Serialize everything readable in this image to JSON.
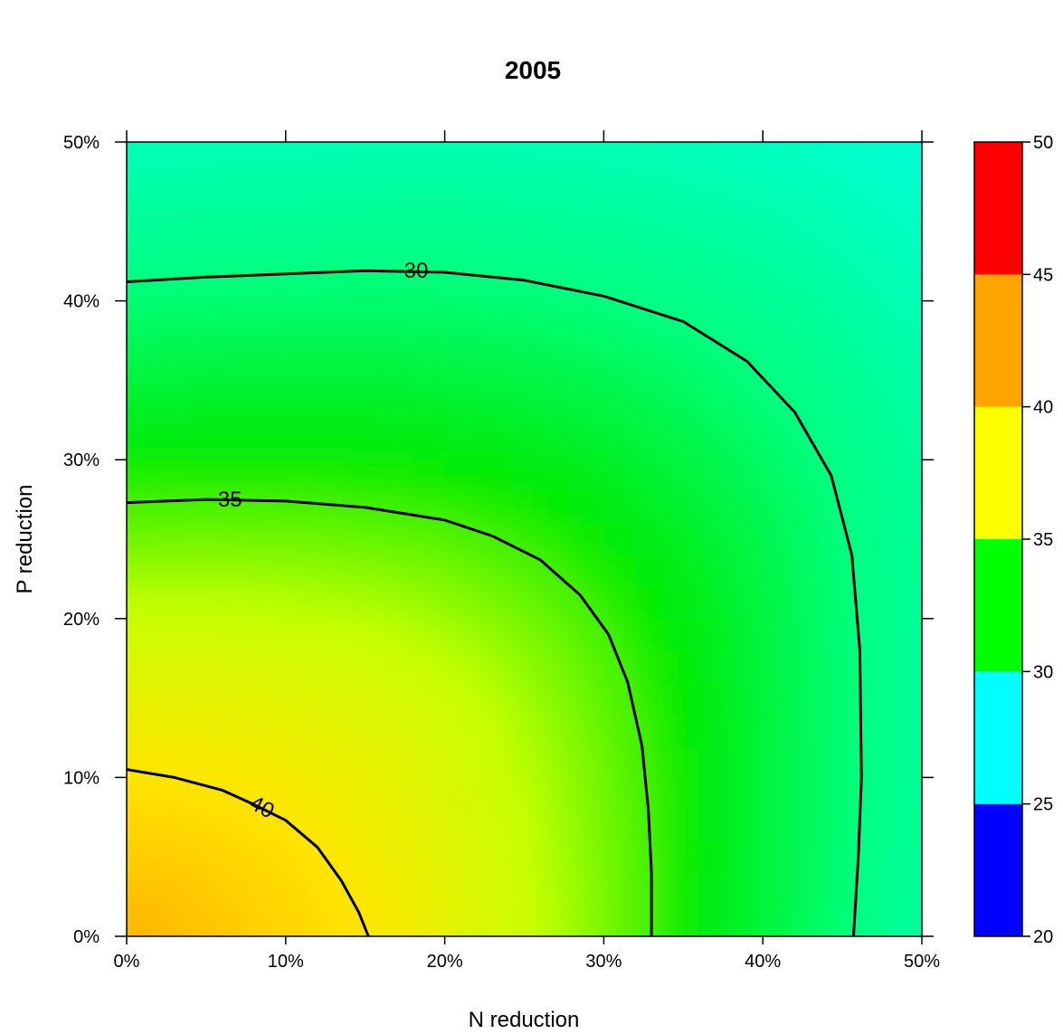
{
  "chart_data": {
    "type": "heatmap",
    "title": "2005",
    "xlabel": "N reduction",
    "ylabel": "P reduction",
    "xlim": [
      0,
      50
    ],
    "ylim": [
      0,
      50
    ],
    "x_ticks": [
      0,
      10,
      20,
      30,
      40,
      50
    ],
    "y_ticks": [
      0,
      10,
      20,
      30,
      40,
      50
    ],
    "x_tick_labels": [
      "0%",
      "10%",
      "20%",
      "30%",
      "40%",
      "50%"
    ],
    "y_tick_labels": [
      "0%",
      "10%",
      "20%",
      "30%",
      "40%",
      "50%"
    ],
    "colorbar": {
      "breaks": [
        20,
        25,
        30,
        35,
        40,
        45,
        50
      ],
      "labels": [
        "20",
        "25",
        "30",
        "35",
        "40",
        "45",
        "50"
      ],
      "colors": [
        "#0000ff",
        "#00ffff",
        "#00ff00",
        "#ffff00",
        "#ffa500",
        "#ff0000"
      ]
    },
    "contours": [
      {
        "level": 30,
        "label": "30",
        "points": [
          [
            0,
            41.2
          ],
          [
            5,
            41.5
          ],
          [
            10,
            41.7
          ],
          [
            15,
            41.9
          ],
          [
            20,
            41.8
          ],
          [
            25,
            41.3
          ],
          [
            30,
            40.3
          ],
          [
            35,
            38.7
          ],
          [
            39,
            36.2
          ],
          [
            42,
            33.0
          ],
          [
            44.3,
            29.0
          ],
          [
            45.6,
            24.0
          ],
          [
            46.1,
            18.0
          ],
          [
            46.2,
            10.0
          ],
          [
            46.0,
            5.0
          ],
          [
            45.7,
            0
          ]
        ]
      },
      {
        "level": 35,
        "label": "35",
        "points": [
          [
            0,
            27.3
          ],
          [
            5,
            27.5
          ],
          [
            10,
            27.4
          ],
          [
            15,
            27.0
          ],
          [
            20,
            26.2
          ],
          [
            23,
            25.2
          ],
          [
            26,
            23.7
          ],
          [
            28.5,
            21.5
          ],
          [
            30.3,
            19.0
          ],
          [
            31.5,
            16.0
          ],
          [
            32.4,
            12.0
          ],
          [
            32.8,
            8.0
          ],
          [
            33.0,
            4.0
          ],
          [
            33.0,
            0
          ]
        ]
      },
      {
        "level": 40,
        "label": "40",
        "points": [
          [
            0,
            10.5
          ],
          [
            3,
            10.0
          ],
          [
            6,
            9.2
          ],
          [
            8,
            8.3
          ],
          [
            10,
            7.3
          ],
          [
            12,
            5.6
          ],
          [
            13.5,
            3.5
          ],
          [
            14.6,
            1.5
          ],
          [
            15.2,
            0
          ]
        ]
      }
    ]
  }
}
